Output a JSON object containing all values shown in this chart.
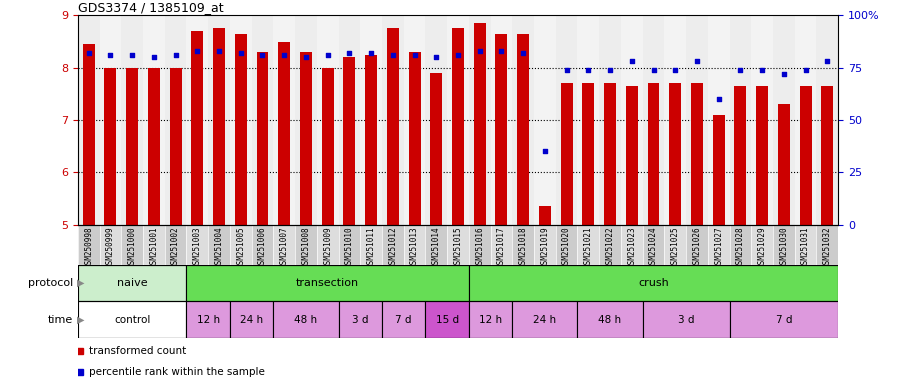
{
  "title": "GDS3374 / 1385109_at",
  "samples": [
    "GSM250998",
    "GSM250999",
    "GSM251000",
    "GSM251001",
    "GSM251002",
    "GSM251003",
    "GSM251004",
    "GSM251005",
    "GSM251006",
    "GSM251007",
    "GSM251008",
    "GSM251009",
    "GSM251010",
    "GSM251011",
    "GSM251012",
    "GSM251013",
    "GSM251014",
    "GSM251015",
    "GSM251016",
    "GSM251017",
    "GSM251018",
    "GSM251019",
    "GSM251020",
    "GSM251021",
    "GSM251022",
    "GSM251023",
    "GSM251024",
    "GSM251025",
    "GSM251026",
    "GSM251027",
    "GSM251028",
    "GSM251029",
    "GSM251030",
    "GSM251031",
    "GSM251032"
  ],
  "bar_values": [
    8.45,
    8.0,
    8.0,
    8.0,
    8.0,
    8.7,
    8.75,
    8.65,
    8.3,
    8.5,
    8.3,
    8.0,
    8.2,
    8.25,
    8.75,
    8.3,
    7.9,
    8.75,
    8.85,
    8.65,
    8.65,
    5.35,
    7.7,
    7.7,
    7.7,
    7.65,
    7.7,
    7.7,
    7.7,
    7.1,
    7.65,
    7.65,
    7.3,
    7.65,
    7.65
  ],
  "percentile_values": [
    82,
    81,
    81,
    80,
    81,
    83,
    83,
    82,
    81,
    81,
    80,
    81,
    82,
    82,
    81,
    81,
    80,
    81,
    83,
    83,
    82,
    35,
    74,
    74,
    74,
    78,
    74,
    74,
    78,
    60,
    74,
    74,
    72,
    74,
    78
  ],
  "ylim": [
    5,
    9
  ],
  "yticks": [
    5,
    6,
    7,
    8,
    9
  ],
  "y2lim": [
    0,
    100
  ],
  "y2ticks": [
    0,
    25,
    50,
    75,
    100
  ],
  "y2ticklabels": [
    "0",
    "25",
    "50",
    "75",
    "100%"
  ],
  "bar_color": "#cc0000",
  "dot_color": "#0000cc",
  "bar_bottom": 5.0,
  "protocol_groups": [
    {
      "label": "naive",
      "start": 0,
      "end": 4,
      "color": "#cceecc"
    },
    {
      "label": "transection",
      "start": 5,
      "end": 17,
      "color": "#66dd55"
    },
    {
      "label": "crush",
      "start": 18,
      "end": 34,
      "color": "#66dd55"
    }
  ],
  "time_groups": [
    {
      "label": "control",
      "start": 0,
      "end": 4,
      "color": "#ffffff"
    },
    {
      "label": "12 h",
      "start": 5,
      "end": 6,
      "color": "#dd99dd"
    },
    {
      "label": "24 h",
      "start": 7,
      "end": 8,
      "color": "#dd99dd"
    },
    {
      "label": "48 h",
      "start": 9,
      "end": 11,
      "color": "#dd99dd"
    },
    {
      "label": "3 d",
      "start": 12,
      "end": 13,
      "color": "#dd99dd"
    },
    {
      "label": "7 d",
      "start": 14,
      "end": 15,
      "color": "#dd99dd"
    },
    {
      "label": "15 d",
      "start": 16,
      "end": 17,
      "color": "#cc55cc"
    },
    {
      "label": "12 h",
      "start": 18,
      "end": 19,
      "color": "#dd99dd"
    },
    {
      "label": "24 h",
      "start": 20,
      "end": 22,
      "color": "#dd99dd"
    },
    {
      "label": "48 h",
      "start": 23,
      "end": 25,
      "color": "#dd99dd"
    },
    {
      "label": "3 d",
      "start": 26,
      "end": 29,
      "color": "#dd99dd"
    },
    {
      "label": "7 d",
      "start": 30,
      "end": 34,
      "color": "#dd99dd"
    }
  ],
  "legend_items": [
    {
      "label": "transformed count",
      "color": "#cc0000"
    },
    {
      "label": "percentile rank within the sample",
      "color": "#0000cc"
    }
  ],
  "tick_label_color": "#cc0000",
  "right_tick_color": "#0000cc",
  "col_bg_even": "#cccccc",
  "col_bg_odd": "#dddddd"
}
